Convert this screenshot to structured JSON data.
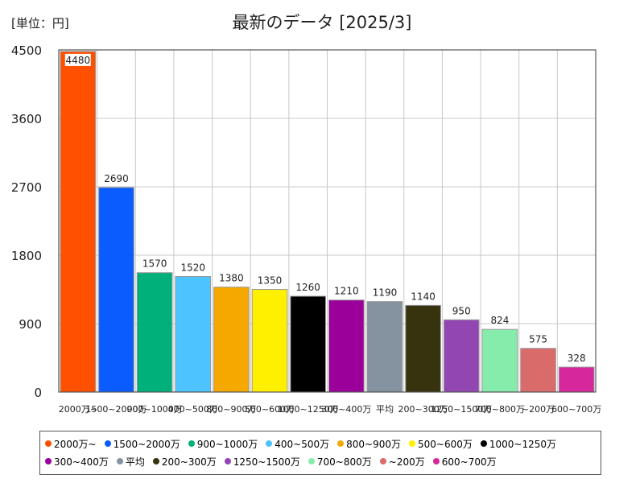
{
  "unit_label": "[単位：円]",
  "title": "最新のデータ [2025/3]",
  "chart_data": {
    "type": "bar",
    "title": "最新のデータ [2025/3]",
    "unit": "[単位：円]",
    "categories": [
      "2000万~",
      "1500~2000万",
      "900~1000万",
      "400~500万",
      "800~900万",
      "500~600万",
      "1000~1250万",
      "300~400万",
      "平均",
      "200~300万",
      "1250~1500万",
      "700~800万",
      "~200万",
      "600~700万"
    ],
    "values": [
      4480,
      2690,
      1570,
      1520,
      1380,
      1350,
      1260,
      1210,
      1190,
      1140,
      950,
      824,
      575,
      328
    ],
    "colors": [
      "#ff5000",
      "#0a5cff",
      "#00b07a",
      "#4dc3ff",
      "#f5a800",
      "#fff000",
      "#000000",
      "#9b009b",
      "#8592a0",
      "#38330f",
      "#9246b2",
      "#86ecac",
      "#d96b6b",
      "#d6289c"
    ],
    "ylim": [
      0,
      4500
    ],
    "yticks": [
      0,
      900,
      1800,
      2700,
      3600,
      4500
    ],
    "grid": true,
    "legend_position": "bottom"
  }
}
